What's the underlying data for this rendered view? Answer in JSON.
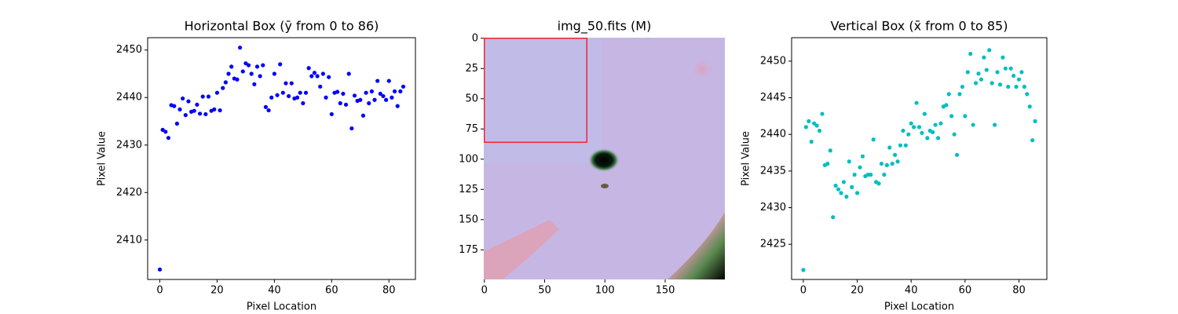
{
  "chart_data": [
    {
      "type": "line",
      "title": "Horizontal Box (ȳ from 0 to 86)",
      "xlabel": "Pixel Location",
      "ylabel": "Pixel Value",
      "color": "#0000ff",
      "linestyle": "dashed",
      "marker": "circle",
      "x": [
        0,
        1,
        2,
        3,
        4,
        5,
        6,
        7,
        8,
        9,
        10,
        11,
        12,
        13,
        14,
        15,
        16,
        17,
        18,
        19,
        20,
        21,
        22,
        23,
        24,
        25,
        26,
        27,
        28,
        29,
        30,
        31,
        32,
        33,
        34,
        35,
        36,
        37,
        38,
        39,
        40,
        41,
        42,
        43,
        44,
        45,
        46,
        47,
        48,
        49,
        50,
        51,
        52,
        53,
        54,
        55,
        56,
        57,
        58,
        59,
        60,
        61,
        62,
        63,
        64,
        65,
        66,
        67,
        68,
        69,
        70,
        71,
        72,
        73,
        74,
        75,
        76,
        77,
        78,
        79,
        80,
        81,
        82,
        83,
        84,
        85
      ],
      "values": [
        2403.8,
        2433.2,
        2432.8,
        2431.5,
        2438.4,
        2438.2,
        2434.5,
        2437.5,
        2439.8,
        2436.3,
        2439.2,
        2437,
        2437.2,
        2438.5,
        2436.6,
        2440.2,
        2436.5,
        2440.2,
        2437.2,
        2437.5,
        2441,
        2437.3,
        2442,
        2443.2,
        2445,
        2446.5,
        2444,
        2443.8,
        2450.5,
        2445.5,
        2447.2,
        2446.8,
        2445,
        2442.8,
        2446.5,
        2444.5,
        2446.8,
        2438,
        2437.3,
        2440,
        2445,
        2440.5,
        2447,
        2441,
        2443,
        2440.3,
        2443,
        2439.8,
        2440,
        2441,
        2438.8,
        2441,
        2446.2,
        2444.5,
        2445.2,
        2444.5,
        2442.3,
        2445,
        2440,
        2444.3,
        2436.5,
        2441,
        2441.2,
        2438.8,
        2440.8,
        2438.5,
        2445,
        2433.5,
        2440.4,
        2439.3,
        2439.5,
        2436.2,
        2441,
        2438.8,
        2441.3,
        2439.5,
        2443.5,
        2440.8,
        2440.3,
        2439.5,
        2443.5,
        2440,
        2441.3,
        2438.2,
        2441.3,
        2442.3
      ],
      "xlim": [
        -4.25,
        89.25
      ],
      "xticks": [
        0,
        20,
        40,
        60,
        80
      ],
      "ylim": [
        2401.7,
        2452.6
      ],
      "yticks": [
        2410,
        2420,
        2430,
        2440,
        2450
      ]
    },
    {
      "type": "image",
      "title": "img_50.fits (M)",
      "xlim": [
        -0.5,
        199.5
      ],
      "ylim": [
        199.5,
        -0.5
      ],
      "xticks": [
        0,
        50,
        100,
        150
      ],
      "yticks": [
        0,
        25,
        50,
        75,
        100,
        125,
        150,
        175
      ],
      "box": {
        "x": [
          0,
          85
        ],
        "y": [
          0,
          86
        ]
      },
      "box_color": "#ff0000"
    },
    {
      "type": "line",
      "title": "Vertical Box (x̄ from 0 to 85)",
      "xlabel": "Pixel Location",
      "ylabel": "Pixel Value",
      "color": "#00bfbf",
      "linestyle": "dashed",
      "marker": "circle",
      "x": [
        0,
        1,
        2,
        3,
        4,
        5,
        6,
        7,
        8,
        9,
        10,
        11,
        12,
        13,
        14,
        15,
        16,
        17,
        18,
        19,
        20,
        21,
        22,
        23,
        24,
        25,
        26,
        27,
        28,
        29,
        30,
        31,
        32,
        33,
        34,
        35,
        36,
        37,
        38,
        39,
        40,
        41,
        42,
        43,
        44,
        45,
        46,
        47,
        48,
        49,
        50,
        51,
        52,
        53,
        54,
        55,
        56,
        57,
        58,
        59,
        60,
        61,
        62,
        63,
        64,
        65,
        66,
        67,
        68,
        69,
        70,
        71,
        72,
        73,
        74,
        75,
        76,
        77,
        78,
        79,
        80,
        81,
        82,
        83,
        84,
        85,
        86
      ],
      "values": [
        2421.5,
        2441,
        2441.8,
        2439,
        2441.5,
        2441.2,
        2440.5,
        2442.8,
        2435.8,
        2436,
        2437.8,
        2428.7,
        2433,
        2432.5,
        2432,
        2433.5,
        2431.5,
        2436.3,
        2432.8,
        2434.5,
        2432,
        2435.5,
        2437,
        2434.3,
        2434.5,
        2434.5,
        2439.3,
        2433.5,
        2433.3,
        2436,
        2434.5,
        2435.8,
        2438.2,
        2436,
        2437.2,
        2436.3,
        2438.5,
        2440.5,
        2438.5,
        2440,
        2441.5,
        2441,
        2444.3,
        2441,
        2440.2,
        2442.8,
        2439.5,
        2440.5,
        2440.3,
        2441.3,
        2439.5,
        2441.5,
        2443.8,
        2444,
        2445.5,
        2442.5,
        2440,
        2437.2,
        2445.5,
        2446.5,
        2442.5,
        2448.5,
        2451,
        2441.3,
        2447,
        2448.3,
        2447.5,
        2450.5,
        2448.8,
        2451.5,
        2447,
        2441.3,
        2448.5,
        2446.8,
        2450.5,
        2449,
        2446.5,
        2449,
        2448,
        2446.5,
        2447.5,
        2448.5,
        2446.5,
        2445.5,
        2443.8,
        2439.2,
        2441.8
      ],
      "xlim": [
        -4.35,
        90.35
      ],
      "xticks": [
        0,
        20,
        40,
        60,
        80
      ],
      "ylim": [
        2420.2,
        2453.2
      ],
      "yticks": [
        2425,
        2430,
        2435,
        2440,
        2445,
        2450
      ]
    }
  ]
}
